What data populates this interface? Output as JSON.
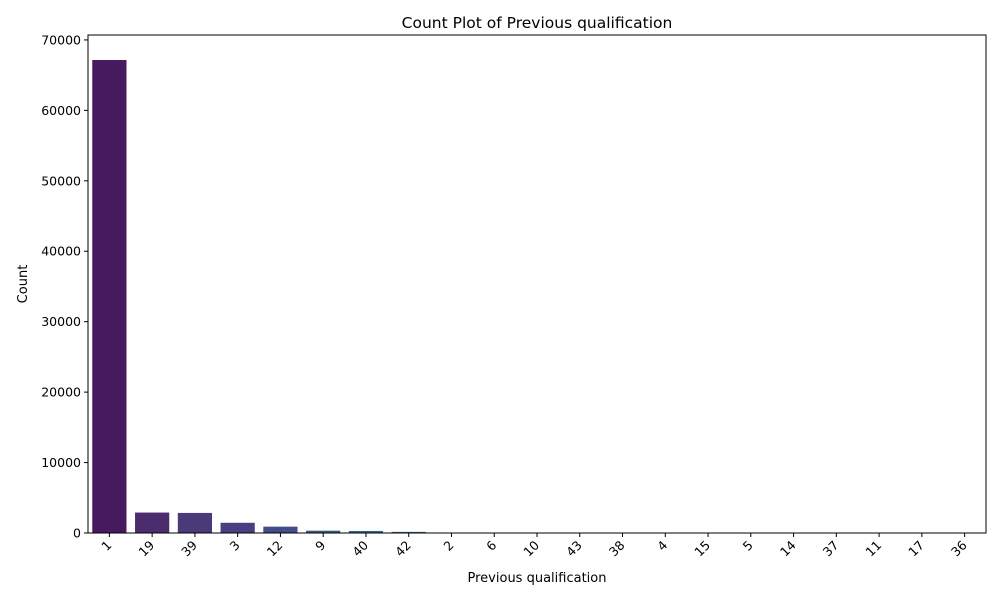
{
  "chart_data": {
    "type": "bar",
    "title": "Count Plot of Previous qualification",
    "xlabel": "Previous qualification",
    "ylabel": "Count",
    "categories": [
      "1",
      "19",
      "39",
      "3",
      "12",
      "9",
      "40",
      "42",
      "2",
      "6",
      "10",
      "43",
      "38",
      "4",
      "15",
      "5",
      "14",
      "37",
      "11",
      "17",
      "36"
    ],
    "values": [
      67150,
      2900,
      2850,
      1450,
      900,
      330,
      290,
      160,
      60,
      40,
      30,
      25,
      20,
      15,
      12,
      10,
      8,
      6,
      5,
      4,
      3
    ],
    "ylim": [
      0,
      70700
    ],
    "yticks": [
      0,
      10000,
      20000,
      30000,
      40000,
      50000,
      60000,
      70000
    ],
    "grid": false,
    "colors": [
      "#471a60",
      "#4b2c6e",
      "#4a3a7a",
      "#463f82",
      "#414d89",
      "#3a5a8c",
      "#35648d",
      "#316e8e",
      "#2c788e",
      "#29828e",
      "#258b8d",
      "#21958b",
      "#1f9f88",
      "#22a985",
      "#2db27d",
      "#3cbb75",
      "#52c468",
      "#6ccd5a",
      "#8ad548",
      "#a8db34",
      "#c8e020"
    ]
  }
}
